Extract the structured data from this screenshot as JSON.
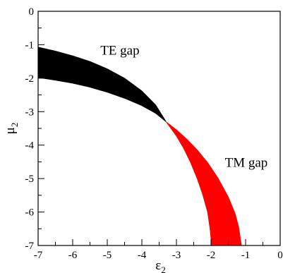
{
  "chart_data": {
    "type": "area",
    "title": "",
    "xlabel": "ε",
    "xlabel_sub": "2",
    "ylabel": "μ",
    "ylabel_sub": "2",
    "xlim": [
      -7,
      0
    ],
    "ylim": [
      -7,
      0
    ],
    "xticks": [
      -7,
      -6,
      -5,
      -4,
      -3,
      -2,
      -1,
      0
    ],
    "yticks": [
      0,
      -1,
      -2,
      -3,
      -4,
      -5,
      -6,
      -7
    ],
    "grid": false,
    "legend": "none",
    "series": [
      {
        "label": "TE gap",
        "color": "#000000",
        "upper": {
          "x": [
            -7.0,
            -6.5,
            -6.0,
            -5.5,
            -5.0,
            -4.5,
            -4.0,
            -3.6,
            -3.3
          ],
          "y": [
            -1.07,
            -1.19,
            -1.33,
            -1.5,
            -1.72,
            -2.0,
            -2.38,
            -2.8,
            -3.3
          ]
        },
        "lower": {
          "x": [
            -7.0,
            -6.5,
            -6.0,
            -5.5,
            -5.0,
            -4.5,
            -4.0,
            -3.6,
            -3.3
          ],
          "y": [
            -1.98,
            -2.06,
            -2.15,
            -2.27,
            -2.42,
            -2.6,
            -2.82,
            -3.05,
            -3.3
          ]
        }
      },
      {
        "label": "TM gap",
        "color": "#ff0000",
        "upper": {
          "x": [
            -3.3,
            -3.0,
            -2.7,
            -2.4,
            -2.1,
            -1.8,
            -1.5,
            -1.3,
            -1.2,
            -1.12
          ],
          "y": [
            -3.3,
            -3.54,
            -3.82,
            -4.14,
            -4.52,
            -4.98,
            -5.55,
            -6.05,
            -6.45,
            -7.0
          ]
        },
        "lower": {
          "x": [
            -3.3,
            -3.0,
            -2.8,
            -2.6,
            -2.4,
            -2.25,
            -2.1,
            -2.03,
            -1.98
          ],
          "y": [
            -3.3,
            -3.73,
            -4.08,
            -4.5,
            -5.0,
            -5.45,
            -6.0,
            -6.5,
            -7.0
          ]
        }
      }
    ],
    "annotations": [
      {
        "text": "TE gap",
        "x": -5.2,
        "y": -1.3
      },
      {
        "text": "TM gap",
        "x": -1.6,
        "y": -4.65
      }
    ]
  }
}
